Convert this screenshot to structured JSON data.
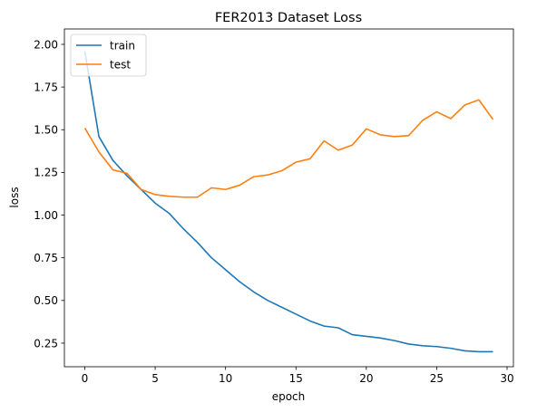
{
  "chart_data": {
    "type": "line",
    "title": "FER2013 Dataset Loss",
    "xlabel": "epoch",
    "ylabel": "loss",
    "xlim": [
      -1.45,
      30.45
    ],
    "ylim": [
      0.112,
      2.09
    ],
    "x_ticks": [
      0,
      5,
      10,
      15,
      20,
      25,
      30
    ],
    "y_ticks": [
      0.25,
      0.5,
      0.75,
      1.0,
      1.25,
      1.5,
      1.75,
      2.0
    ],
    "x_tick_labels": [
      "0",
      "5",
      "10",
      "15",
      "20",
      "25",
      "30"
    ],
    "y_tick_labels": [
      "0.25",
      "0.50",
      "0.75",
      "1.00",
      "1.25",
      "1.50",
      "1.75",
      "2.00"
    ],
    "grid": false,
    "legend_position": "top-left",
    "x": [
      0,
      1,
      2,
      3,
      4,
      5,
      6,
      7,
      8,
      9,
      10,
      11,
      12,
      13,
      14,
      15,
      16,
      17,
      18,
      19,
      20,
      21,
      22,
      23,
      24,
      25,
      26,
      27,
      28,
      29
    ],
    "series": [
      {
        "name": "train",
        "color": "#1f77b4",
        "values": [
          1.96,
          1.46,
          1.32,
          1.23,
          1.15,
          1.07,
          1.01,
          0.92,
          0.84,
          0.75,
          0.68,
          0.61,
          0.55,
          0.5,
          0.46,
          0.42,
          0.38,
          0.35,
          0.34,
          0.3,
          0.29,
          0.28,
          0.265,
          0.245,
          0.235,
          0.23,
          0.22,
          0.205,
          0.2,
          0.2
        ]
      },
      {
        "name": "test",
        "color": "#ff7f0e",
        "values": [
          1.51,
          1.37,
          1.265,
          1.245,
          1.15,
          1.12,
          1.11,
          1.105,
          1.105,
          1.16,
          1.15,
          1.175,
          1.225,
          1.235,
          1.26,
          1.31,
          1.33,
          1.435,
          1.38,
          1.41,
          1.505,
          1.47,
          1.46,
          1.465,
          1.555,
          1.605,
          1.565,
          1.645,
          1.675,
          1.56
        ]
      }
    ]
  }
}
